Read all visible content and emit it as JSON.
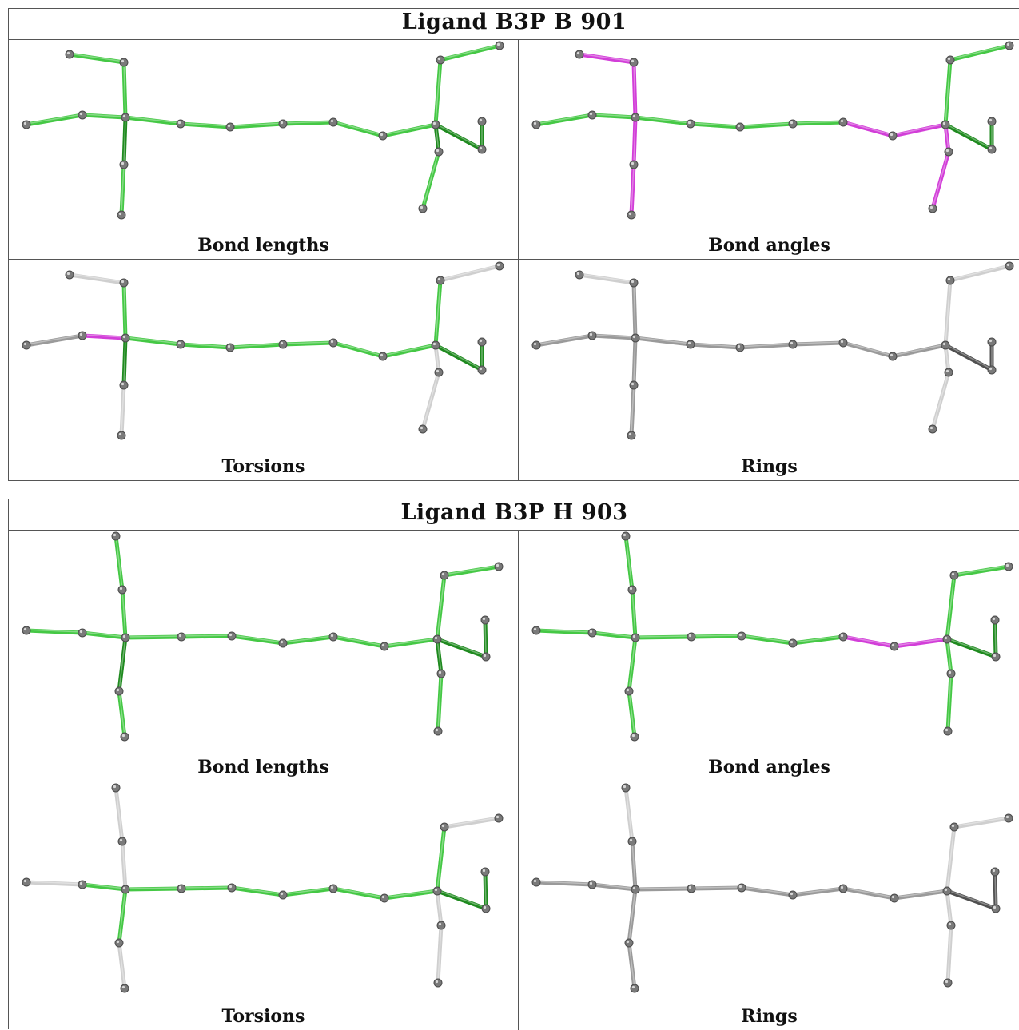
{
  "colors": {
    "green": "#45c845",
    "green_dark": "#1f8a1f",
    "magenta": "#d23ed8",
    "gray": "#9a9a9a",
    "gray_light": "#cfcfcf",
    "gray_dark": "#505050",
    "atom": "#7a7a7a"
  },
  "blocks": [
    {
      "title": "Ligand B3P B 901",
      "panels": {
        "bond_lengths": "Bond lengths",
        "bond_angles": "Bond angles",
        "torsions": "Torsions",
        "rings": "Rings"
      }
    },
    {
      "title": "Ligand B3P H 903",
      "panels": {
        "bond_lengths": "Bond lengths",
        "bond_angles": "Bond angles",
        "torsions": "Torsions",
        "rings": "Rings"
      }
    }
  ]
}
